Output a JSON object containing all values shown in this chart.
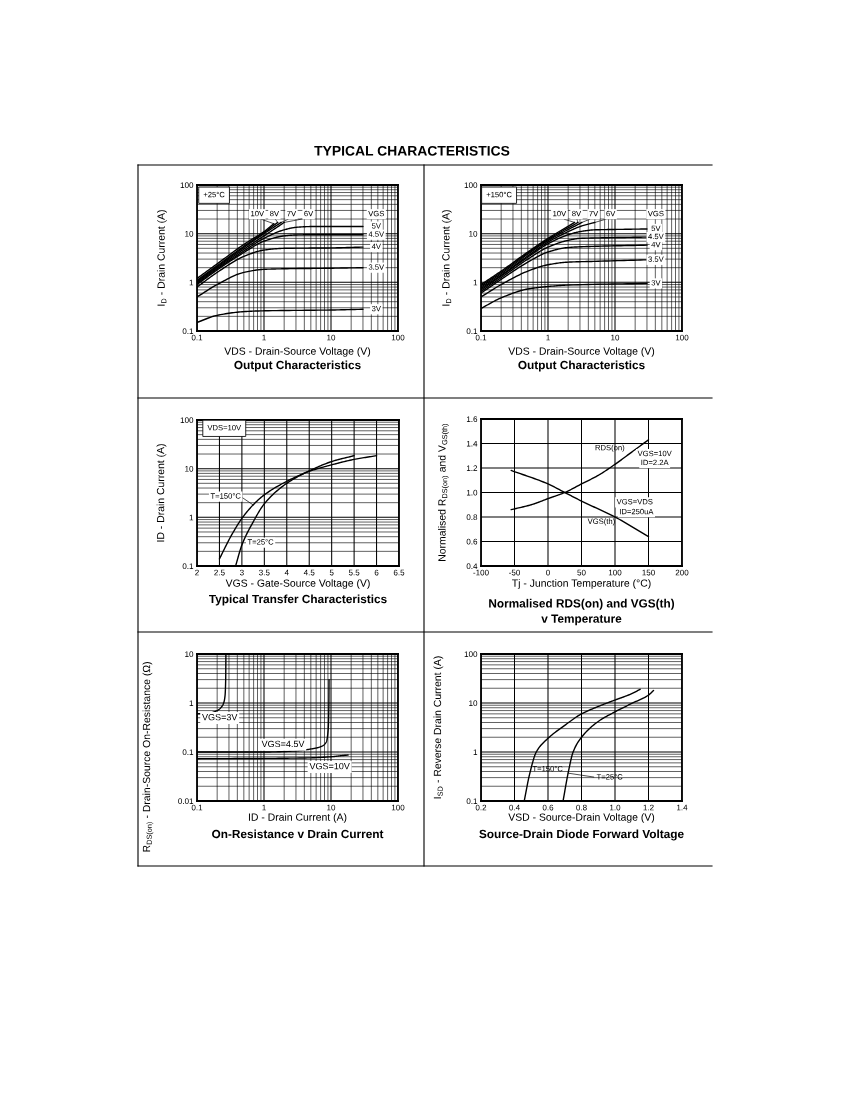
{
  "chart_data": [
    {
      "type": "line",
      "title": "Output Characteristics",
      "xlabel": "VDS - Drain-Source Voltage (V)",
      "ylabel": "I$_{D}$ - Drain Current (A)",
      "log": "xy",
      "xlim": [
        0.1,
        100
      ],
      "ylim": [
        0.1,
        100
      ],
      "xticks": [
        0.1,
        1,
        10,
        100
      ],
      "yticks": [
        0.1,
        1,
        10,
        100
      ],
      "grid": true,
      "legend_title": "VGS",
      "annotations": [
        "TYPICAL CHARACTERISTICS",
        "+25°C"
      ],
      "series": [
        {
          "name": "10V",
          "color": "#000000",
          "x": [
            0.1,
            0.2,
            0.5,
            1,
            1.4
          ],
          "values": [
            1.2,
            2.4,
            6,
            11,
            16
          ]
        },
        {
          "name": "8V",
          "color": "#000000",
          "x": [
            0.1,
            0.2,
            0.5,
            1,
            1.6
          ],
          "values": [
            1.1,
            2.2,
            5.5,
            10.5,
            17
          ]
        },
        {
          "name": "7V",
          "color": "#000000",
          "x": [
            0.1,
            0.2,
            0.5,
            1,
            1.8
          ],
          "values": [
            1.05,
            2.1,
            5.2,
            10,
            17
          ]
        },
        {
          "name": "6V",
          "color": "#000000",
          "x": [
            0.1,
            0.2,
            0.5,
            1,
            2
          ],
          "values": [
            1,
            2,
            4.8,
            9,
            17
          ]
        },
        {
          "name": "5V",
          "color": "#000000",
          "x": [
            0.1,
            0.2,
            0.5,
            1,
            2,
            3,
            5,
            30
          ],
          "values": [
            0.95,
            1.9,
            4.4,
            8,
            12,
            13.5,
            14,
            14
          ]
        },
        {
          "name": "4.5V",
          "color": "#000000",
          "x": [
            0.1,
            0.2,
            0.5,
            1,
            2,
            3,
            5,
            30
          ],
          "values": [
            0.9,
            1.8,
            4.1,
            7,
            9,
            9.4,
            9.5,
            9.5
          ]
        },
        {
          "name": "4V",
          "color": "#000000",
          "x": [
            0.1,
            0.2,
            0.5,
            1,
            2,
            10,
            30
          ],
          "values": [
            0.8,
            1.6,
            3.4,
            4.6,
            5,
            5.1,
            5.3
          ]
        },
        {
          "name": "3.5V",
          "color": "#000000",
          "x": [
            0.1,
            0.2,
            0.5,
            1,
            2,
            10,
            30
          ],
          "values": [
            0.5,
            0.9,
            1.6,
            1.85,
            1.9,
            1.95,
            2
          ]
        },
        {
          "name": "3V",
          "color": "#000000",
          "x": [
            0.1,
            0.2,
            0.5,
            1,
            10,
            30
          ],
          "values": [
            0.15,
            0.21,
            0.25,
            0.26,
            0.27,
            0.28
          ]
        }
      ]
    },
    {
      "type": "line",
      "title": "Output Characteristics",
      "xlabel": "VDS - Drain-Source Voltage (V)",
      "ylabel": "I$_{D}$ - Drain Current (A)",
      "log": "xy",
      "xlim": [
        0.1,
        100
      ],
      "ylim": [
        0.1,
        100
      ],
      "xticks": [
        0.1,
        1,
        10,
        100
      ],
      "yticks": [
        0.1,
        1,
        10,
        100
      ],
      "grid": true,
      "legend_title": "VGS",
      "annotations": [
        "+150°C"
      ],
      "series": [
        {
          "name": "10V",
          "color": "#000000",
          "x": [
            0.1,
            0.2,
            0.5,
            1,
            2.5
          ],
          "values": [
            0.9,
            1.7,
            4.2,
            8,
            17
          ]
        },
        {
          "name": "8V",
          "color": "#000000",
          "x": [
            0.1,
            0.2,
            0.5,
            1,
            2.8
          ],
          "values": [
            0.85,
            1.6,
            4,
            7.6,
            17
          ]
        },
        {
          "name": "7V",
          "color": "#000000",
          "x": [
            0.1,
            0.2,
            0.5,
            1,
            3.2
          ],
          "values": [
            0.8,
            1.5,
            3.8,
            7.2,
            17
          ]
        },
        {
          "name": "6V",
          "color": "#000000",
          "x": [
            0.1,
            0.2,
            0.5,
            1,
            2,
            3,
            5
          ],
          "values": [
            0.75,
            1.4,
            3.5,
            6.7,
            11,
            14,
            17
          ]
        },
        {
          "name": "5V",
          "color": "#000000",
          "x": [
            0.1,
            0.2,
            0.5,
            1,
            2,
            3,
            5,
            10,
            30
          ],
          "values": [
            0.7,
            1.35,
            3.3,
            6.2,
            9.5,
            11,
            12,
            12.2,
            12.5
          ]
        },
        {
          "name": "4.5V",
          "color": "#000000",
          "x": [
            0.1,
            0.2,
            0.5,
            1,
            2,
            3,
            10,
            30
          ],
          "values": [
            0.65,
            1.25,
            3,
            5.3,
            7.3,
            8,
            8.3,
            8.5
          ]
        },
        {
          "name": "4V",
          "color": "#000000",
          "x": [
            0.1,
            0.2,
            0.5,
            1,
            2,
            5,
            30
          ],
          "values": [
            0.6,
            1.15,
            2.6,
            4.2,
            5.2,
            5.5,
            5.8
          ]
        },
        {
          "name": "3.5V",
          "color": "#000000",
          "x": [
            0.1,
            0.2,
            0.5,
            1,
            2,
            5,
            30
          ],
          "values": [
            0.5,
            0.9,
            1.7,
            2.3,
            2.6,
            2.7,
            2.9
          ]
        },
        {
          "name": "3V",
          "color": "#000000",
          "x": [
            0.1,
            0.2,
            0.5,
            1,
            2,
            30
          ],
          "values": [
            0.29,
            0.48,
            0.73,
            0.82,
            0.88,
            0.95
          ]
        }
      ]
    },
    {
      "type": "line",
      "title": "Typical Transfer Characteristics",
      "xlabel": "VGS - Gate-Source Voltage (V)",
      "ylabel": "ID - Drain Current (A)",
      "log": "y",
      "xlim": [
        2,
        6.5
      ],
      "ylim": [
        0.1,
        100
      ],
      "xticks": [
        2,
        2.5,
        3,
        3.5,
        4,
        4.5,
        5,
        5.5,
        6,
        6.5
      ],
      "yticks": [
        0.1,
        1,
        10,
        100
      ],
      "grid": true,
      "annotations": [
        "VDS=10V"
      ],
      "series": [
        {
          "name": "T=150°C",
          "color": "#000000",
          "x": [
            2.5,
            2.75,
            3,
            3.25,
            3.5,
            4,
            4.5,
            5,
            5.5,
            6
          ],
          "values": [
            0.14,
            0.4,
            0.95,
            1.8,
            2.9,
            5.5,
            8.8,
            12,
            15.5,
            18.5
          ]
        },
        {
          "name": "T=25°C",
          "color": "#000000",
          "x": [
            2.86,
            3,
            3.25,
            3.5,
            4,
            4.5,
            5,
            5.5
          ],
          "values": [
            0.1,
            0.27,
            0.8,
            1.9,
            5,
            9,
            14,
            18.5
          ]
        }
      ]
    },
    {
      "type": "line",
      "title": "Normalised RDS(on) and VGS(th)\nv Temperature",
      "xlabel": "Tj - Junction Temperature (°C)",
      "ylabel": "Normalised R$_{DS(on)}$ and V$_{GS(th)}$",
      "xlim": [
        -100,
        200
      ],
      "ylim": [
        0.4,
        1.6
      ],
      "xticks": [
        -100,
        -50,
        0,
        50,
        100,
        150,
        200
      ],
      "yticks": [
        0.4,
        0.6,
        0.8,
        {
          "value": 1,
          "label": "1.0"
        },
        1.2,
        1.4,
        1.6
      ],
      "grid": true,
      "annotations": [
        "VGS=10V",
        "ID=2.2A",
        "VGS=VDS",
        "ID=250uA"
      ],
      "series": [
        {
          "name": "RDS(on)",
          "color": "#000000",
          "x": [
            -55,
            -25,
            0,
            25,
            50,
            75,
            100,
            125,
            150
          ],
          "values": [
            0.86,
            0.9,
            0.95,
            1,
            1.07,
            1.14,
            1.23,
            1.33,
            1.43
          ]
        },
        {
          "name": "VGS(th)",
          "color": "#000000",
          "x": [
            -55,
            0,
            25,
            50,
            100,
            150
          ],
          "values": [
            1.18,
            1.07,
            1,
            0.93,
            0.8,
            0.64
          ]
        }
      ]
    },
    {
      "type": "line",
      "title": "On-Resistance v Drain Current",
      "xlabel": "ID - Drain Current (A)",
      "ylabel": "R$_{DS(on)}$ - Drain-Source On-Resistance (Ω)",
      "log": "xy",
      "xlim": [
        0.1,
        100
      ],
      "ylim": [
        0.01,
        10
      ],
      "xticks": [
        0.1,
        1,
        10,
        100
      ],
      "yticks": [
        0.01,
        0.1,
        1,
        10
      ],
      "grid": true,
      "series": [
        {
          "name": "VGS=3V",
          "color": "#000000",
          "x": [
            0.1,
            0.16,
            0.2,
            0.235,
            0.25,
            0.262,
            0.268,
            0.27
          ],
          "values": [
            0.6,
            0.63,
            0.7,
            0.85,
            1,
            1.4,
            3,
            10
          ]
        },
        {
          "name": "VGS=4.5V",
          "color": "#000000",
          "x": [
            0.1,
            1,
            3,
            5,
            7,
            8.5,
            9.1,
            9.3,
            9.35
          ],
          "values": [
            0.1,
            0.1,
            0.105,
            0.115,
            0.128,
            0.16,
            0.3,
            1,
            3
          ]
        },
        {
          "name": "VGS=10V",
          "color": "#000000",
          "x": [
            0.1,
            1,
            5,
            10,
            18
          ],
          "values": [
            0.073,
            0.074,
            0.076,
            0.08,
            0.087
          ]
        }
      ]
    },
    {
      "type": "line",
      "title": "Source-Drain Diode Forward Voltage",
      "xlabel": "VSD - Source-Drain Voltage (V)",
      "ylabel": "I$_{SD}$ - Reverse Drain Current (A)",
      "log": "y",
      "xlim": [
        0.2,
        1.4
      ],
      "ylim": [
        0.1,
        100
      ],
      "xticks": [
        0.2,
        0.4,
        0.6,
        0.8,
        {
          "value": 1,
          "label": "1.0"
        },
        1.2,
        1.4
      ],
      "yticks": [
        0.1,
        1,
        10,
        100
      ],
      "grid": true,
      "series": [
        {
          "name": "T=150°C",
          "color": "#000000",
          "x": [
            0.458,
            0.49,
            0.53,
            0.6,
            0.7,
            0.8,
            0.9,
            1,
            1.1,
            1.15
          ],
          "values": [
            0.1,
            0.35,
            1,
            1.9,
            3.5,
            6,
            8.5,
            11.5,
            15.5,
            19
          ]
        },
        {
          "name": "T=25°C",
          "color": "#000000",
          "x": [
            0.69,
            0.72,
            0.75,
            0.8,
            0.9,
            1,
            1.1,
            1.2,
            1.23
          ],
          "values": [
            0.1,
            0.37,
            1,
            2,
            4.2,
            6.6,
            9.8,
            14.5,
            18
          ]
        }
      ]
    }
  ]
}
